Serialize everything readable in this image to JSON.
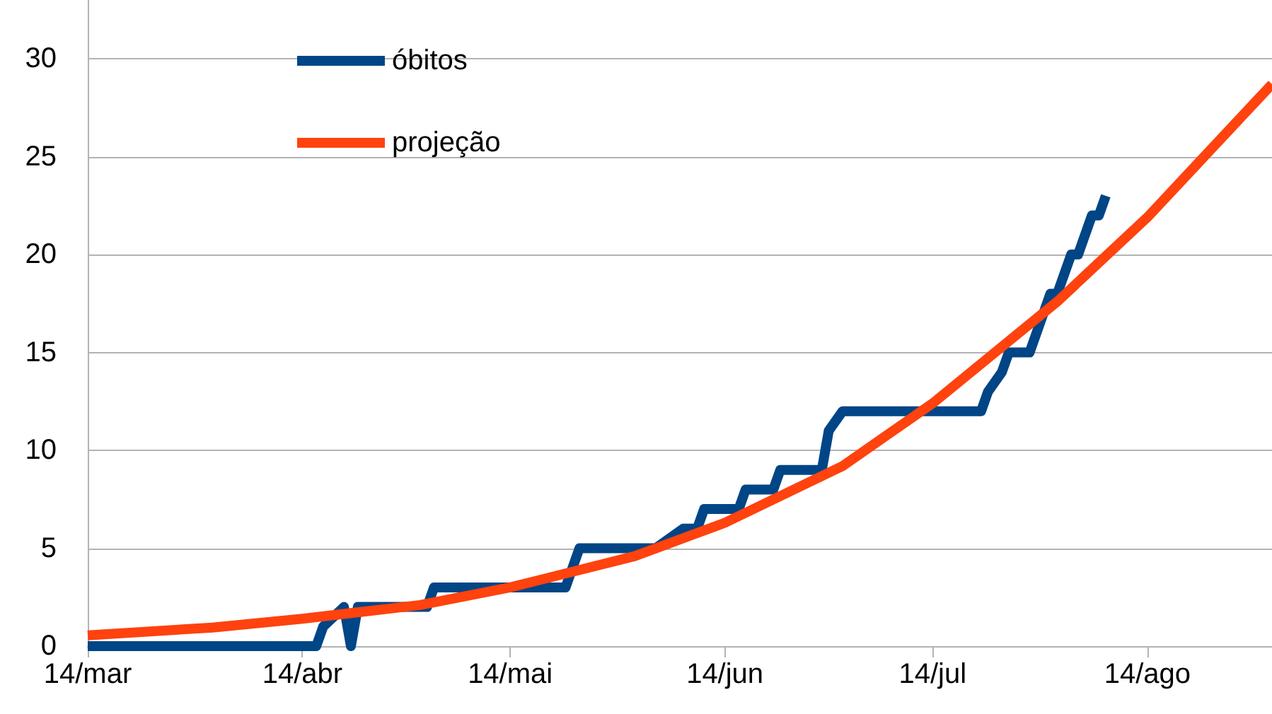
{
  "chart_data": {
    "type": "line",
    "x": [
      "--03-14",
      "--04-16",
      "--04-17",
      "--04-20",
      "--04-21",
      "--04-22",
      "--05-02",
      "--05-03",
      "--05-22",
      "--05-23",
      "--05-24",
      "--06-04",
      "--06-08",
      "--06-10",
      "--06-11",
      "--06-16",
      "--06-17",
      "--06-21",
      "--06-22",
      "--06-28",
      "--06-29",
      "--07-01",
      "--07-21",
      "--07-22",
      "--07-24",
      "--07-25",
      "--07-28",
      "--07-31",
      "--08-01",
      "--08-03",
      "--08-04",
      "--08-06",
      "--08-07",
      "--08-08"
    ],
    "series": [
      {
        "name": "óbitos",
        "color": "#004586",
        "values": [
          0,
          0,
          1,
          2,
          0,
          2,
          2,
          3,
          3,
          4,
          5,
          5,
          6,
          6,
          7,
          7,
          8,
          8,
          9,
          9,
          11,
          12,
          12,
          13,
          14,
          15,
          15,
          18,
          18,
          20,
          20,
          22,
          22,
          23
        ]
      },
      {
        "name": "projeção",
        "color": "#ff420e",
        "x": [
          "--03-14",
          "--04-01",
          "--04-14",
          "--05-01",
          "--05-14",
          "--06-01",
          "--06-14",
          "--07-01",
          "--07-14",
          "--08-01",
          "--08-14",
          "--09-01"
        ],
        "values": [
          0.55,
          0.95,
          1.4,
          2.1,
          3.0,
          4.6,
          6.3,
          9.2,
          12.4,
          17.6,
          21.9,
          28.7
        ]
      }
    ],
    "xlim": [
      "--03-14",
      "--09-01"
    ],
    "xticks": [
      {
        "value": "--03-14",
        "label": "14/mar"
      },
      {
        "value": "--04-14",
        "label": "14/abr"
      },
      {
        "value": "--05-14",
        "label": "14/mai"
      },
      {
        "value": "--06-14",
        "label": "14/jun"
      },
      {
        "value": "--07-14",
        "label": "14/jul"
      },
      {
        "value": "--08-14",
        "label": "14/ago"
      }
    ],
    "ylim": [
      0,
      33
    ],
    "yticks": [
      0,
      5,
      10,
      15,
      20,
      25,
      30
    ],
    "grid": "y",
    "legend": "top left",
    "marker": "none",
    "line_style": "solid"
  }
}
